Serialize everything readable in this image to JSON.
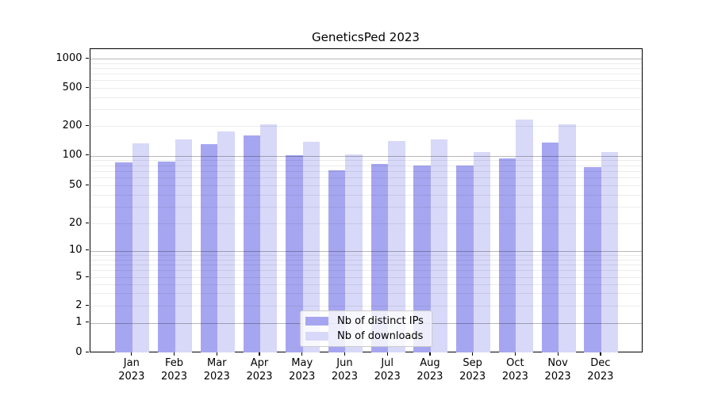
{
  "chart_data": {
    "type": "bar",
    "title": "GeneticsPed 2023",
    "categories": [
      "Jan 2023",
      "Feb 2023",
      "Mar 2023",
      "Apr 2023",
      "May 2023",
      "Jun 2023",
      "Jul 2023",
      "Aug 2023",
      "Sep 2023",
      "Oct 2023",
      "Nov 2023",
      "Dec 2023"
    ],
    "series": [
      {
        "name": "Nb of distinct IPs",
        "color": "#a6a6f0",
        "values": [
          86,
          87,
          131,
          161,
          101,
          71,
          83,
          79,
          80,
          94,
          135,
          77
        ]
      },
      {
        "name": "Nb of downloads",
        "color": "#d8d8f8",
        "values": [
          134,
          147,
          176,
          209,
          140,
          103,
          141,
          146,
          110,
          233,
          207,
          110
        ]
      }
    ],
    "xlabel": "",
    "ylabel": "",
    "yscale": "symlog",
    "yticks": [
      0,
      1,
      2,
      5,
      10,
      20,
      50,
      100,
      200,
      500,
      1000
    ],
    "ylim": [
      0,
      1300
    ],
    "grid": true,
    "grid_major_color": "#b3b3b3",
    "grid_minor_color": "#e9e9e9",
    "legend_position": "lower center"
  }
}
